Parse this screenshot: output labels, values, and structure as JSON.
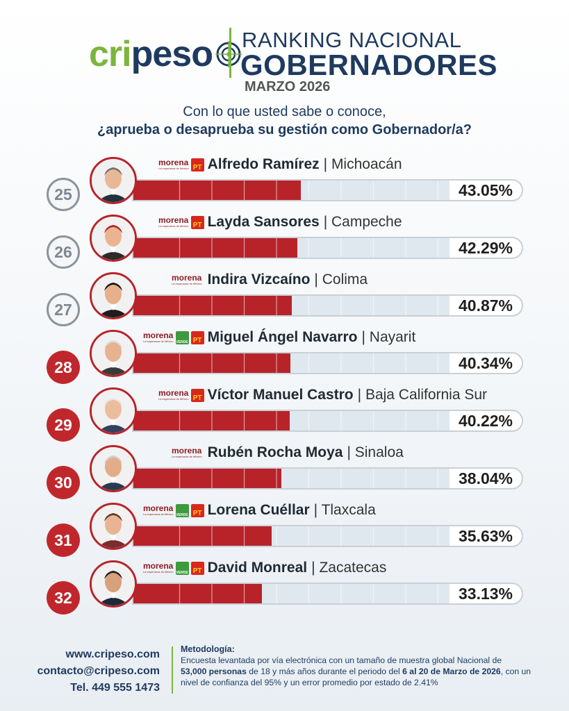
{
  "logo": {
    "part1": "cri",
    "part2": "peso"
  },
  "header": {
    "line1": "RANKING NACIONAL",
    "line2": "GOBERNADORES",
    "date": "MARZO 2026"
  },
  "question": {
    "line1": "Con lo que usted sabe o conoce,",
    "line2": "¿aprueba o desaprueba su gestión como Gobernador/a?"
  },
  "party_labels": {
    "morena": "morena",
    "morena_slogan": "La esperanza de México",
    "verde": "VERDE",
    "pt": "PT"
  },
  "colors": {
    "bar_fill": "#b8232a",
    "bar_track": "#dfe8ef",
    "accent_green": "#7cb53e",
    "navy": "#1e3a5f"
  },
  "chart_data": {
    "type": "bar",
    "orientation": "horizontal",
    "xlim": [
      0,
      100
    ],
    "categories": [
      "Alfredo Ramírez",
      "Layda Sansores",
      "Indira Vizcaíno",
      "Miguel Ángel Navarro",
      "Víctor Manuel Castro",
      "Rubén Rocha Moya",
      "Lorena Cuéllar",
      "David Monreal"
    ],
    "values": [
      43.05,
      42.29,
      40.87,
      40.34,
      40.22,
      38.04,
      35.63,
      33.13
    ],
    "rows": [
      {
        "rank": "25",
        "name": "Alfredo Ramírez",
        "state": "Michoacán",
        "value": 43.05,
        "value_label": "43.05%",
        "parties": [
          "morena",
          "pt"
        ],
        "badge": "gray"
      },
      {
        "rank": "26",
        "name": "Layda Sansores",
        "state": "Campeche",
        "value": 42.29,
        "value_label": "42.29%",
        "parties": [
          "morena",
          "pt"
        ],
        "badge": "gray"
      },
      {
        "rank": "27",
        "name": "Indira Vizcaíno",
        "state": "Colima",
        "value": 40.87,
        "value_label": "40.87%",
        "parties": [
          "morena"
        ],
        "badge": "gray"
      },
      {
        "rank": "28",
        "name": "Miguel Ángel Navarro",
        "state": "Nayarit",
        "value": 40.34,
        "value_label": "40.34%",
        "parties": [
          "morena",
          "verde",
          "pt"
        ],
        "badge": "red"
      },
      {
        "rank": "29",
        "name": "Víctor Manuel Castro",
        "state": "Baja California Sur",
        "value": 40.22,
        "value_label": "40.22%",
        "parties": [
          "morena",
          "pt"
        ],
        "badge": "red"
      },
      {
        "rank": "30",
        "name": "Rubén Rocha Moya",
        "state": "Sinaloa",
        "value": 38.04,
        "value_label": "38.04%",
        "parties": [
          "morena"
        ],
        "badge": "red"
      },
      {
        "rank": "31",
        "name": "Lorena Cuéllar",
        "state": "Tlaxcala",
        "value": 35.63,
        "value_label": "35.63%",
        "parties": [
          "morena",
          "verde",
          "pt"
        ],
        "badge": "red"
      },
      {
        "rank": "32",
        "name": "David Monreal",
        "state": "Zacatecas",
        "value": 33.13,
        "value_label": "33.13%",
        "parties": [
          "morena",
          "verde",
          "pt"
        ],
        "badge": "red"
      }
    ]
  },
  "footer": {
    "web": "www.cripeso.com",
    "email": "contacto@cripeso.com",
    "phone": "Tel. 449 555 1473",
    "methodology_title": "Metodología:",
    "methodology_a": "Encuesta levantada por vía electrónica con un tamaño de muestra global Nacional de",
    "methodology_b": "53,000 personas",
    "methodology_c": " de 18 y más años durante el periodo del ",
    "methodology_d": "6 al 20 de Marzo de 2026",
    "methodology_e": ", con un nivel de confianza del 95% y un error promedio por estado de 2.41%"
  }
}
